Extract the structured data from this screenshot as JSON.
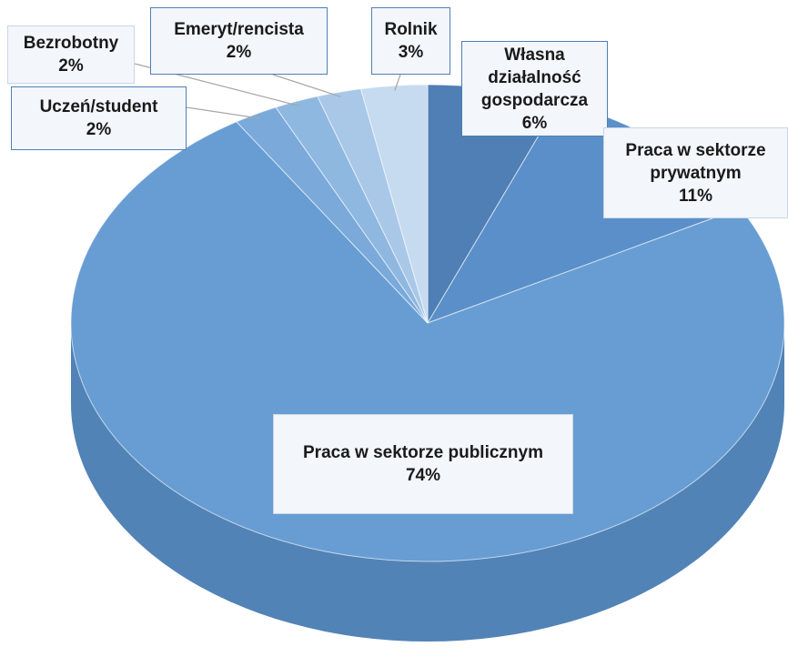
{
  "chart_data": {
    "type": "pie",
    "categories": [
      "Własna działalność gospodarcza",
      "Praca w sektorze prywatnym",
      "Praca w sektorze publicznym",
      "Uczeń/student",
      "Bezrobotny",
      "Emeryt/rencista",
      "Rolnik"
    ],
    "values": [
      6,
      11,
      74,
      2,
      2,
      2,
      3
    ],
    "value_labels": [
      "6%",
      "11%",
      "74%",
      "2%",
      "2%",
      "2%",
      "3%"
    ],
    "colors": [
      "#4f7fb4",
      "#5b8fc9",
      "#679dd3",
      "#7aa9da",
      "#8fb8e0",
      "#a9c8e8",
      "#c6dbf0"
    ]
  }
}
